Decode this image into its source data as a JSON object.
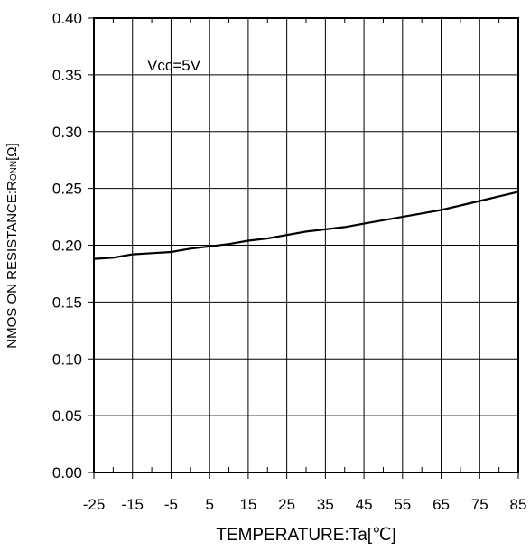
{
  "chart_data": {
    "type": "line",
    "xlabel": "TEMPERATURE:Ta[℃]",
    "ylabel": "NMOS ON RESISTANCE:R",
    "ylabel_sub": "ONN",
    "ylabel_unit": "[Ω]",
    "annotation": "Vcc=5V",
    "xlim": [
      -25,
      85
    ],
    "ylim": [
      0,
      0.4
    ],
    "x_ticks": [
      -25,
      -15,
      -5,
      5,
      15,
      25,
      35,
      45,
      55,
      65,
      75,
      85
    ],
    "x_tick_labels": [
      "-25",
      "-15",
      "-5",
      "5",
      "15",
      "25",
      "35",
      "45",
      "55",
      "65",
      "75",
      "85"
    ],
    "y_ticks": [
      0,
      0.05,
      0.1,
      0.15,
      0.2,
      0.25,
      0.3,
      0.35,
      0.4
    ],
    "y_tick_labels": [
      "0.00",
      "0.05",
      "0.10",
      "0.15",
      "0.20",
      "0.25",
      "0.30",
      "0.35",
      "0.40"
    ],
    "grid": true,
    "series": [
      {
        "x": [
          -25,
          -20,
          -15,
          -10,
          -5,
          0,
          5,
          10,
          15,
          20,
          25,
          30,
          35,
          40,
          45,
          50,
          55,
          60,
          65,
          70,
          75,
          80,
          85
        ],
        "y": [
          0.188,
          0.189,
          0.192,
          0.193,
          0.194,
          0.197,
          0.199,
          0.201,
          0.204,
          0.206,
          0.209,
          0.212,
          0.214,
          0.216,
          0.219,
          0.222,
          0.225,
          0.228,
          0.231,
          0.235,
          0.239,
          0.243,
          0.247
        ]
      }
    ]
  }
}
